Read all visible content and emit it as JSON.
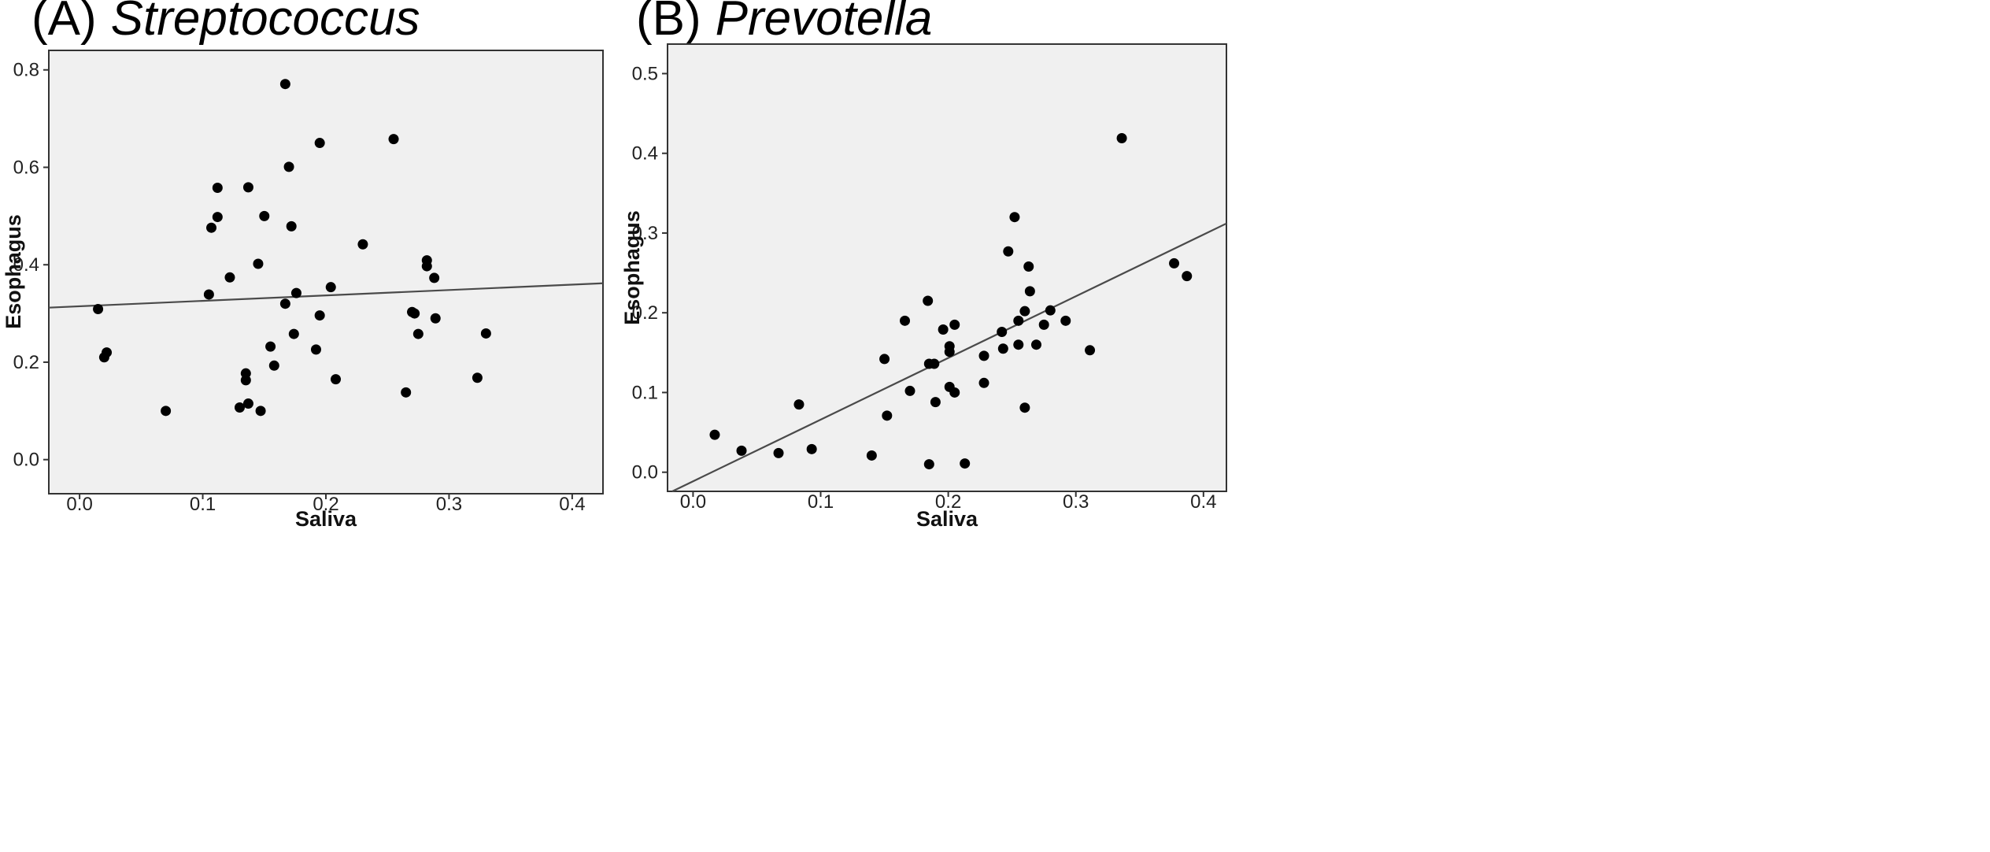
{
  "chart_data": [
    {
      "type": "scatter",
      "panel_label": "(A)",
      "title": "Streptococcus",
      "xlabel": "Saliva",
      "ylabel": "Esophagus",
      "xlim": [
        -0.025,
        0.425
      ],
      "ylim": [
        -0.07,
        0.84
      ],
      "xticks": [
        0.0,
        0.1,
        0.2,
        0.3,
        0.4
      ],
      "xtick_labels": [
        "0.0",
        "0.1",
        "0.2",
        "0.3",
        "0.4"
      ],
      "yticks": [
        0.0,
        0.2,
        0.4,
        0.6,
        0.8
      ],
      "ytick_labels": [
        "0.0",
        "0.2",
        "0.4",
        "0.6",
        "0.8"
      ],
      "grid": false,
      "colors": {
        "plot_background": "#f0f0f0",
        "points": "#000000",
        "fit_line": "#4a4a4a"
      },
      "fit_line": {
        "x": [
          -0.025,
          0.425
        ],
        "y": [
          0.312,
          0.362
        ]
      },
      "points": [
        {
          "x": 0.015,
          "y": 0.309
        },
        {
          "x": 0.02,
          "y": 0.21
        },
        {
          "x": 0.022,
          "y": 0.22
        },
        {
          "x": 0.07,
          "y": 0.1
        },
        {
          "x": 0.105,
          "y": 0.339
        },
        {
          "x": 0.107,
          "y": 0.476
        },
        {
          "x": 0.112,
          "y": 0.558
        },
        {
          "x": 0.112,
          "y": 0.498
        },
        {
          "x": 0.122,
          "y": 0.374
        },
        {
          "x": 0.13,
          "y": 0.107
        },
        {
          "x": 0.135,
          "y": 0.177
        },
        {
          "x": 0.135,
          "y": 0.163
        },
        {
          "x": 0.137,
          "y": 0.559
        },
        {
          "x": 0.137,
          "y": 0.115
        },
        {
          "x": 0.145,
          "y": 0.402
        },
        {
          "x": 0.147,
          "y": 0.1
        },
        {
          "x": 0.15,
          "y": 0.5
        },
        {
          "x": 0.155,
          "y": 0.232
        },
        {
          "x": 0.158,
          "y": 0.193
        },
        {
          "x": 0.167,
          "y": 0.771
        },
        {
          "x": 0.167,
          "y": 0.32
        },
        {
          "x": 0.17,
          "y": 0.601
        },
        {
          "x": 0.172,
          "y": 0.479
        },
        {
          "x": 0.174,
          "y": 0.258
        },
        {
          "x": 0.176,
          "y": 0.342
        },
        {
          "x": 0.192,
          "y": 0.226
        },
        {
          "x": 0.195,
          "y": 0.65
        },
        {
          "x": 0.195,
          "y": 0.296
        },
        {
          "x": 0.204,
          "y": 0.354
        },
        {
          "x": 0.208,
          "y": 0.165
        },
        {
          "x": 0.23,
          "y": 0.442
        },
        {
          "x": 0.255,
          "y": 0.658
        },
        {
          "x": 0.265,
          "y": 0.138
        },
        {
          "x": 0.27,
          "y": 0.303
        },
        {
          "x": 0.272,
          "y": 0.3
        },
        {
          "x": 0.275,
          "y": 0.258
        },
        {
          "x": 0.282,
          "y": 0.409
        },
        {
          "x": 0.282,
          "y": 0.397
        },
        {
          "x": 0.288,
          "y": 0.373
        },
        {
          "x": 0.289,
          "y": 0.29
        },
        {
          "x": 0.323,
          "y": 0.168
        },
        {
          "x": 0.33,
          "y": 0.259
        }
      ]
    },
    {
      "type": "scatter",
      "panel_label": "(B)",
      "title": "Prevotella",
      "xlabel": "Saliva",
      "ylabel": "Esophagus",
      "xlim": [
        -0.02,
        0.418
      ],
      "ylim": [
        -0.024,
        0.537
      ],
      "xticks": [
        0.0,
        0.1,
        0.2,
        0.3,
        0.4
      ],
      "xtick_labels": [
        "0.0",
        "0.1",
        "0.2",
        "0.3",
        "0.4"
      ],
      "yticks": [
        0.0,
        0.1,
        0.2,
        0.3,
        0.4,
        0.5
      ],
      "ytick_labels": [
        "0.0",
        "0.1",
        "0.2",
        "0.3",
        "0.4",
        "0.5"
      ],
      "grid": false,
      "colors": {
        "plot_background": "#f0f0f0",
        "points": "#000000",
        "fit_line": "#4a4a4a"
      },
      "fit_line": {
        "x": [
          -0.0163,
          0.418
        ],
        "y": [
          -0.024,
          0.312
        ]
      },
      "points": [
        {
          "x": 0.017,
          "y": 0.047
        },
        {
          "x": 0.038,
          "y": 0.027
        },
        {
          "x": 0.067,
          "y": 0.024
        },
        {
          "x": 0.083,
          "y": 0.085
        },
        {
          "x": 0.093,
          "y": 0.029
        },
        {
          "x": 0.14,
          "y": 0.021
        },
        {
          "x": 0.15,
          "y": 0.142
        },
        {
          "x": 0.152,
          "y": 0.071
        },
        {
          "x": 0.166,
          "y": 0.19
        },
        {
          "x": 0.17,
          "y": 0.102
        },
        {
          "x": 0.184,
          "y": 0.215
        },
        {
          "x": 0.185,
          "y": 0.136
        },
        {
          "x": 0.185,
          "y": 0.01
        },
        {
          "x": 0.189,
          "y": 0.136
        },
        {
          "x": 0.19,
          "y": 0.088
        },
        {
          "x": 0.196,
          "y": 0.179
        },
        {
          "x": 0.201,
          "y": 0.158
        },
        {
          "x": 0.201,
          "y": 0.151
        },
        {
          "x": 0.201,
          "y": 0.107
        },
        {
          "x": 0.205,
          "y": 0.185
        },
        {
          "x": 0.205,
          "y": 0.1
        },
        {
          "x": 0.213,
          "y": 0.011
        },
        {
          "x": 0.228,
          "y": 0.146
        },
        {
          "x": 0.228,
          "y": 0.112
        },
        {
          "x": 0.242,
          "y": 0.176
        },
        {
          "x": 0.243,
          "y": 0.155
        },
        {
          "x": 0.247,
          "y": 0.277
        },
        {
          "x": 0.252,
          "y": 0.32
        },
        {
          "x": 0.255,
          "y": 0.19
        },
        {
          "x": 0.255,
          "y": 0.16
        },
        {
          "x": 0.26,
          "y": 0.202
        },
        {
          "x": 0.26,
          "y": 0.081
        },
        {
          "x": 0.263,
          "y": 0.258
        },
        {
          "x": 0.264,
          "y": 0.227
        },
        {
          "x": 0.269,
          "y": 0.16
        },
        {
          "x": 0.275,
          "y": 0.185
        },
        {
          "x": 0.28,
          "y": 0.203
        },
        {
          "x": 0.292,
          "y": 0.19
        },
        {
          "x": 0.311,
          "y": 0.153
        },
        {
          "x": 0.336,
          "y": 0.419
        },
        {
          "x": 0.377,
          "y": 0.262
        },
        {
          "x": 0.387,
          "y": 0.246
        }
      ]
    }
  ]
}
